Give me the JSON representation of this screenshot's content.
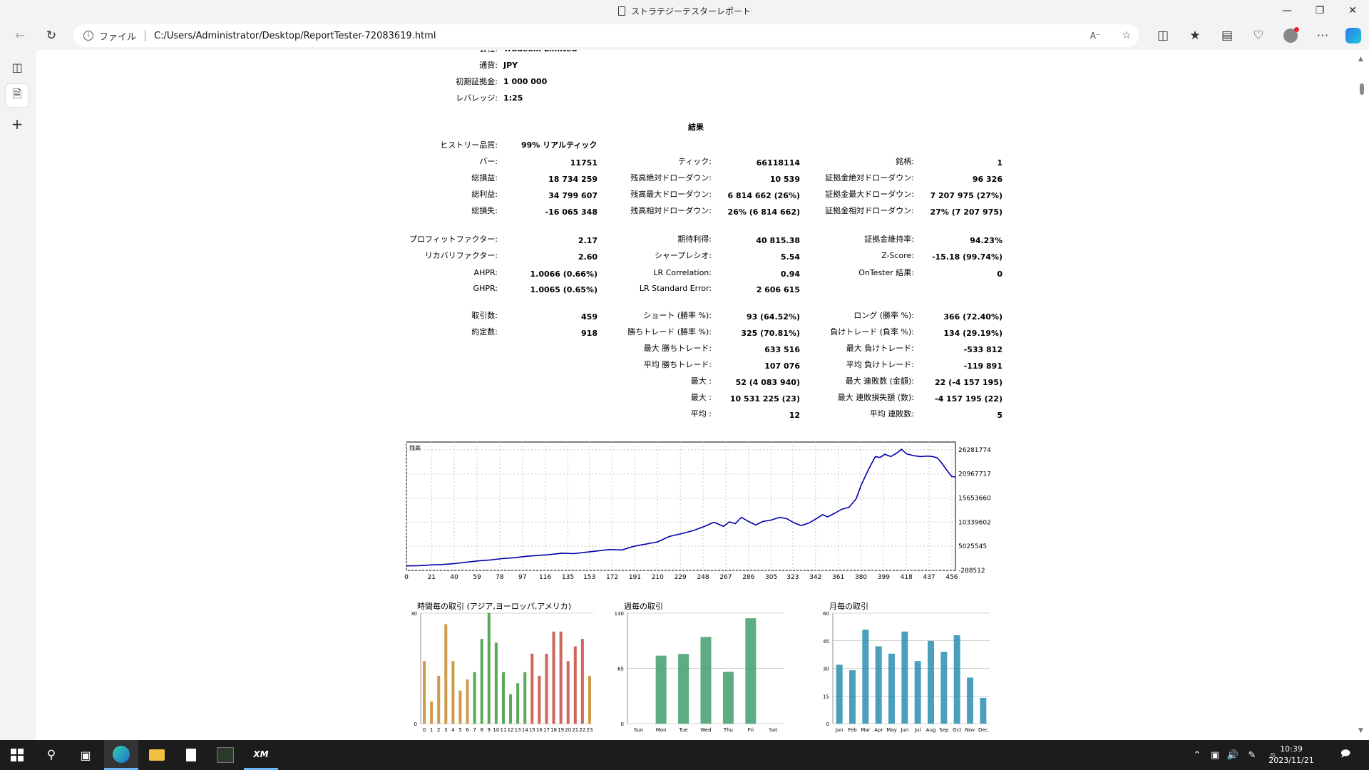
{
  "window": {
    "title": "ストラテジーテスターレポート"
  },
  "address": {
    "protocol": "ファイル",
    "url": "C:/Users/Administrator/Desktop/ReportTester-72083619.html"
  },
  "header_partial": [
    {
      "label": "会社:",
      "value": "Tradexm Limited"
    },
    {
      "label": "通貨:",
      "value": "JPY"
    },
    {
      "label": "初期証拠金:",
      "value": "1 000 000"
    },
    {
      "label": "レバレッジ:",
      "value": "1:25"
    }
  ],
  "results_title": "結果",
  "history_quality": {
    "label": "ヒストリー品質:",
    "value": "99% リアルティック"
  },
  "results": [
    {
      "label": "バー:",
      "value": "11751",
      "col": 0,
      "row": 0
    },
    {
      "label": "総損益:",
      "value": "18 734 259",
      "col": 0,
      "row": 1
    },
    {
      "label": "総利益:",
      "value": "34 799 607",
      "col": 0,
      "row": 2
    },
    {
      "label": "総損失:",
      "value": "-16 065 348",
      "col": 0,
      "row": 3
    },
    {
      "label": "プロフィットファクター:",
      "value": "2.17",
      "col": 0,
      "row": 4
    },
    {
      "label": "リカバリファクター:",
      "value": "2.60",
      "col": 0,
      "row": 5
    },
    {
      "label": "AHPR:",
      "value": "1.0066 (0.66%)",
      "col": 0,
      "row": 6
    },
    {
      "label": "GHPR:",
      "value": "1.0065 (0.65%)",
      "col": 0,
      "row": 7
    },
    {
      "label": "取引数:",
      "value": "459",
      "col": 0,
      "row": 8
    },
    {
      "label": "約定数:",
      "value": "918",
      "col": 0,
      "row": 9
    },
    {
      "label": "ティック:",
      "value": "66118114",
      "col": 1,
      "row": 0
    },
    {
      "label": "残高絶対ドローダウン:",
      "value": "10 539",
      "col": 1,
      "row": 1
    },
    {
      "label": "残高最大ドローダウン:",
      "value": "6 814 662 (26%)",
      "col": 1,
      "row": 2
    },
    {
      "label": "残高相対ドローダウン:",
      "value": "26% (6 814 662)",
      "col": 1,
      "row": 3
    },
    {
      "label": "期待利得:",
      "value": "40 815.38",
      "col": 1,
      "row": 4
    },
    {
      "label": "シャープレシオ:",
      "value": "5.54",
      "col": 1,
      "row": 5
    },
    {
      "label": "LR Correlation:",
      "value": "0.94",
      "col": 1,
      "row": 6
    },
    {
      "label": "LR Standard Error:",
      "value": "2 606 615",
      "col": 1,
      "row": 7
    },
    {
      "label": "ショート (勝率 %):",
      "value": "93 (64.52%)",
      "col": 1,
      "row": 8
    },
    {
      "label": "勝ちトレード (勝率 %):",
      "value": "325 (70.81%)",
      "col": 1,
      "row": 9
    },
    {
      "label": "最大 勝ちトレード:",
      "value": "633 516",
      "col": 1,
      "row": 10
    },
    {
      "label": "平均 勝ちトレード:",
      "value": "107 076",
      "col": 1,
      "row": 11
    },
    {
      "label": "最大 :",
      "value": "52 (4 083 940)",
      "col": 1,
      "row": 12
    },
    {
      "label": "最大 :",
      "value": "10 531 225 (23)",
      "col": 1,
      "row": 13
    },
    {
      "label": "平均 :",
      "value": "12",
      "col": 1,
      "row": 14
    },
    {
      "label": "銘柄:",
      "value": "1",
      "col": 2,
      "row": 0
    },
    {
      "label": "証拠金絶対ドローダウン:",
      "value": "96 326",
      "col": 2,
      "row": 1
    },
    {
      "label": "証拠金最大ドローダウン:",
      "value": "7 207 975 (27%)",
      "col": 2,
      "row": 2
    },
    {
      "label": "証拠金相対ドローダウン:",
      "value": "27% (7 207 975)",
      "col": 2,
      "row": 3
    },
    {
      "label": "証拠金維持率:",
      "value": "94.23%",
      "col": 2,
      "row": 4
    },
    {
      "label": "Z-Score:",
      "value": "-15.18 (99.74%)",
      "col": 2,
      "row": 5
    },
    {
      "label": "OnTester 結果:",
      "value": "0",
      "col": 2,
      "row": 6
    },
    {
      "label": "ロング (勝率 %):",
      "value": "366 (72.40%)",
      "col": 2,
      "row": 8
    },
    {
      "label": "負けトレード (負率 %):",
      "value": "134 (29.19%)",
      "col": 2,
      "row": 9
    },
    {
      "label": "最大 負けトレード:",
      "value": "-533 812",
      "col": 2,
      "row": 10
    },
    {
      "label": "平均 負けトレード:",
      "value": "-119 891",
      "col": 2,
      "row": 11
    },
    {
      "label": "最大 連敗数 (金額):",
      "value": "22 (-4 157 195)",
      "col": 2,
      "row": 12
    },
    {
      "label": "最大 連敗損失額 (数):",
      "value": "-4 157 195 (22)",
      "col": 2,
      "row": 13
    },
    {
      "label": "平均 連敗数:",
      "value": "5",
      "col": 2,
      "row": 14
    }
  ],
  "chart_data": [
    {
      "type": "line",
      "title": "残高",
      "x_ticks": [
        0,
        21,
        40,
        59,
        78,
        97,
        116,
        135,
        153,
        172,
        191,
        210,
        229,
        248,
        267,
        286,
        305,
        323,
        342,
        361,
        380,
        399,
        418,
        437,
        456
      ],
      "y_ticks": [
        -288512,
        5025545,
        10339602,
        15653660,
        20967717,
        26281774
      ],
      "ylim": [
        -288512,
        28000000
      ],
      "xlim": [
        0,
        459
      ],
      "color": "#0000aa",
      "series": [
        {
          "x": [
            0,
            10,
            20,
            30,
            40,
            50,
            60,
            70,
            80,
            90,
            100,
            110,
            120,
            130,
            140,
            150,
            160,
            170,
            180,
            190,
            200,
            210,
            220,
            230,
            240,
            250,
            257,
            260,
            265,
            270,
            275,
            280,
            286,
            292,
            298,
            305,
            312,
            318,
            324,
            330,
            336,
            342,
            348,
            352,
            358,
            364,
            370,
            376,
            380,
            386,
            392,
            396,
            400,
            405,
            410,
            414,
            418,
            424,
            430,
            436,
            440,
            444,
            448,
            452,
            456,
            459
          ],
          "y": [
            700000,
            750000,
            900000,
            1000000,
            1200000,
            1500000,
            1800000,
            2000000,
            2300000,
            2500000,
            2800000,
            3000000,
            3200000,
            3500000,
            3400000,
            3700000,
            4000000,
            4300000,
            4200000,
            5000000,
            5500000,
            6000000,
            7200000,
            7800000,
            8500000,
            9500000,
            10300000,
            10000000,
            9400000,
            10400000,
            10000000,
            11400000,
            10500000,
            9700000,
            10500000,
            10800000,
            11400000,
            11100000,
            10200000,
            9600000,
            10100000,
            11000000,
            12000000,
            11500000,
            12300000,
            13200000,
            13600000,
            15500000,
            18400000,
            21800000,
            24800000,
            24600000,
            25300000,
            24800000,
            25600000,
            26400000,
            25400000,
            25000000,
            24800000,
            24900000,
            24800000,
            24500000,
            23200000,
            21700000,
            20400000,
            20300000
          ]
        }
      ]
    },
    {
      "type": "bar",
      "title": "時間毎の取引 (アジア,ヨーロッパ,アメリカ)",
      "categories": [
        "0",
        "1",
        "2",
        "3",
        "4",
        "5",
        "6",
        "7",
        "8",
        "9",
        "10",
        "11",
        "12",
        "13",
        "14",
        "15",
        "16",
        "17",
        "18",
        "19",
        "20",
        "21",
        "22",
        "23"
      ],
      "values": [
        17,
        6,
        13,
        27,
        17,
        9,
        12,
        14,
        23,
        30,
        22,
        14,
        8,
        11,
        14,
        19,
        13,
        19,
        25,
        25,
        17,
        21,
        23,
        13
      ],
      "y_ticks": [
        0,
        30
      ],
      "ylim": [
        0,
        30
      ],
      "colors": [
        "#c8882a",
        "#c8882a",
        "#c8882a",
        "#c8882a",
        "#c8882a",
        "#c8882a",
        "#c8882a",
        "#3c9a3c",
        "#3c9a3c",
        "#3c9a3c",
        "#3c9a3c",
        "#3c9a3c",
        "#3c9a3c",
        "#3c9a3c",
        "#3c9a3c",
        "#c84b3c",
        "#c84b3c",
        "#c84b3c",
        "#c84b3c",
        "#c84b3c",
        "#c84b3c",
        "#c84b3c",
        "#c84b3c",
        "#c8882a"
      ]
    },
    {
      "type": "bar",
      "title": "週毎の取引",
      "categories": [
        "Sun",
        "Mon",
        "Tue",
        "Wed",
        "Thu",
        "Fri",
        "Sat"
      ],
      "values": [
        0,
        80,
        82,
        102,
        61,
        124,
        0
      ],
      "y_ticks": [
        0,
        65,
        130
      ],
      "ylim": [
        0,
        130
      ],
      "color": "#3f9e6e"
    },
    {
      "type": "bar",
      "title": "月毎の取引",
      "categories": [
        "Jan",
        "Feb",
        "Mar",
        "Apr",
        "May",
        "Jun",
        "Jul",
        "Aug",
        "Sep",
        "Oct",
        "Nov",
        "Dec"
      ],
      "values": [
        32,
        29,
        51,
        42,
        38,
        50,
        34,
        45,
        39,
        48,
        25,
        14
      ],
      "y_ticks": [
        0,
        15,
        30,
        45,
        60
      ],
      "ylim": [
        0,
        60
      ],
      "color": "#2a8fb0"
    }
  ],
  "clock": {
    "time": "10:39",
    "date": "2023/11/21"
  }
}
